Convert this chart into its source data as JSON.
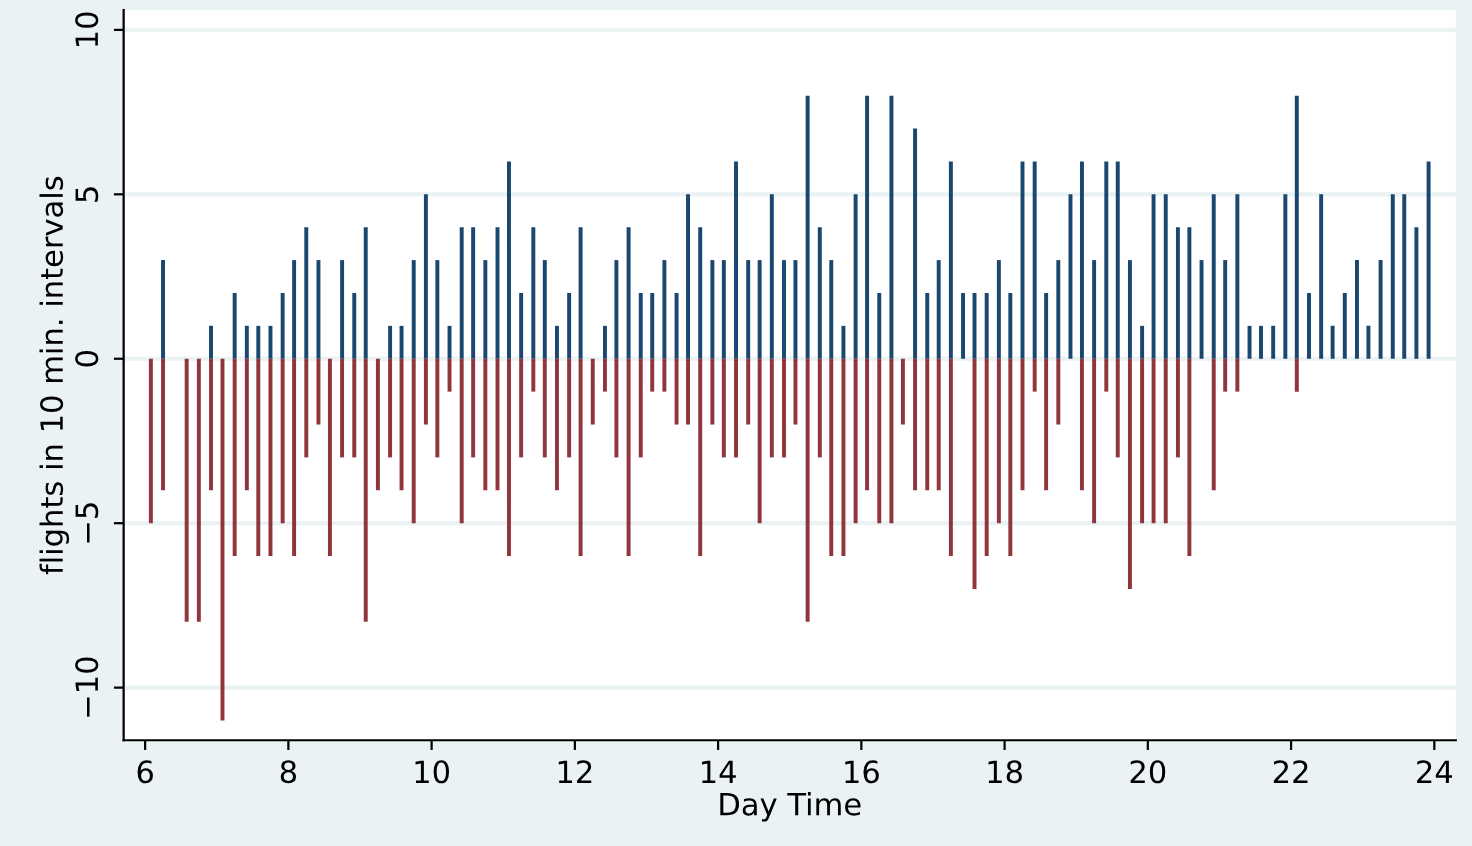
{
  "chart_data": {
    "type": "bar",
    "xlabel": "Day Time",
    "ylabel": "flights in 10 min. intervals",
    "x": [
      6.08,
      6.25,
      6.42,
      6.58,
      6.75,
      6.92,
      7.08,
      7.25,
      7.42,
      7.58,
      7.75,
      7.92,
      8.08,
      8.25,
      8.42,
      8.58,
      8.75,
      8.92,
      9.08,
      9.25,
      9.42,
      9.58,
      9.75,
      9.92,
      10.08,
      10.25,
      10.42,
      10.58,
      10.75,
      10.92,
      11.08,
      11.25,
      11.42,
      11.58,
      11.75,
      11.92,
      12.08,
      12.25,
      12.42,
      12.58,
      12.75,
      12.92,
      13.08,
      13.25,
      13.42,
      13.58,
      13.75,
      13.92,
      14.08,
      14.25,
      14.42,
      14.58,
      14.75,
      14.92,
      15.08,
      15.25,
      15.42,
      15.58,
      15.75,
      15.92,
      16.08,
      16.25,
      16.42,
      16.58,
      16.75,
      16.92,
      17.08,
      17.25,
      17.42,
      17.58,
      17.75,
      17.92,
      18.08,
      18.25,
      18.42,
      18.58,
      18.75,
      18.92,
      19.08,
      19.25,
      19.42,
      19.58,
      19.75,
      19.92,
      20.08,
      20.25,
      20.42,
      20.58,
      20.75,
      20.92,
      21.08,
      21.25,
      21.42,
      21.58,
      21.75,
      21.92,
      22.08,
      22.25,
      22.42,
      22.58,
      22.75,
      22.92,
      23.08,
      23.25,
      23.42,
      23.58,
      23.75,
      23.92
    ],
    "series": [
      {
        "color": "#1a476f",
        "values": [
          null,
          3,
          null,
          null,
          null,
          1,
          null,
          2,
          1,
          1,
          1,
          2,
          3,
          4,
          3,
          null,
          3,
          2,
          4,
          null,
          1,
          1,
          3,
          5,
          3,
          1,
          4,
          4,
          3,
          4,
          6,
          2,
          4,
          3,
          1,
          2,
          4,
          null,
          1,
          3,
          4,
          2,
          2,
          3,
          2,
          5,
          4,
          3,
          3,
          6,
          3,
          3,
          5,
          3,
          3,
          8,
          4,
          3,
          1,
          5,
          8,
          2,
          8,
          null,
          7,
          2,
          3,
          6,
          2,
          2,
          2,
          3,
          2,
          6,
          6,
          2,
          3,
          5,
          6,
          3,
          6,
          6,
          3,
          1,
          5,
          5,
          4,
          4,
          3,
          5,
          3,
          5,
          1,
          1,
          1,
          5,
          8,
          2,
          5,
          1,
          2,
          3,
          1,
          3,
          5,
          5,
          4,
          6
        ]
      },
      {
        "color": "#90353b",
        "values": [
          -5,
          -4,
          null,
          -8,
          -8,
          -4,
          -11,
          -6,
          -4,
          -6,
          -6,
          -5,
          -6,
          -3,
          -2,
          -6,
          -3,
          -3,
          -8,
          -4,
          -3,
          -4,
          -5,
          -2,
          -3,
          -1,
          -5,
          -3,
          -4,
          -4,
          -6,
          -3,
          -1,
          -3,
          -4,
          -3,
          -6,
          -2,
          -1,
          -3,
          -6,
          -3,
          -1,
          -1,
          -2,
          -2,
          -6,
          -2,
          -3,
          -3,
          -2,
          -5,
          -3,
          -3,
          -2,
          -8,
          -3,
          -6,
          -6,
          -5,
          -4,
          -5,
          -5,
          -2,
          -4,
          -4,
          -4,
          -6,
          null,
          -7,
          -6,
          -5,
          -6,
          -4,
          -1,
          -4,
          -2,
          null,
          -4,
          -5,
          -1,
          -3,
          -7,
          -5,
          -5,
          -5,
          -3,
          -6,
          null,
          -4,
          -1,
          -1,
          null,
          null,
          null,
          null,
          -1,
          null,
          null,
          null,
          null,
          null,
          null,
          null,
          null,
          null,
          null,
          null
        ]
      }
    ],
    "xlim": [
      5.7,
      24.3
    ],
    "xticks": [
      6,
      8,
      10,
      12,
      14,
      16,
      18,
      20,
      22,
      24
    ],
    "ylim": [
      -11.6,
      10.6
    ],
    "yticks": [
      -10,
      -5,
      0,
      5,
      10
    ],
    "grid": "y",
    "legend": false
  }
}
